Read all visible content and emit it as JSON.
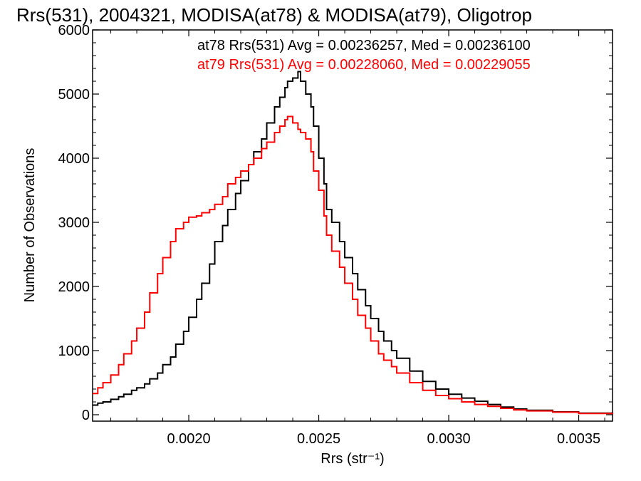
{
  "chart_data": {
    "type": "line",
    "title": "Rrs(531), 2004321, MODISA(at78) & MODISA(at79), Oligotrop",
    "xlabel": "Rrs (str⁻¹)",
    "ylabel": "Number of Observations",
    "xlim": [
      0.00163,
      0.00363
    ],
    "ylim": [
      -100,
      6000
    ],
    "xticks": [
      {
        "value": 0.002,
        "label": "0.0020"
      },
      {
        "value": 0.0025,
        "label": "0.0025"
      },
      {
        "value": 0.003,
        "label": "0.0030"
      },
      {
        "value": 0.0035,
        "label": "0.0035"
      }
    ],
    "yticks": [
      {
        "value": 0,
        "label": "0"
      },
      {
        "value": 1000,
        "label": "1000"
      },
      {
        "value": 2000,
        "label": "2000"
      },
      {
        "value": 3000,
        "label": "3000"
      },
      {
        "value": 4000,
        "label": "4000"
      },
      {
        "value": 5000,
        "label": "5000"
      },
      {
        "value": 6000,
        "label": "6000"
      }
    ],
    "legend_position": "top-right",
    "series": [
      {
        "name": "at78 Rrs(531) Avg = 0.00236257, Med = 0.00236100",
        "color": "#000000",
        "x": [
          0.00163,
          0.00165,
          0.00167,
          0.0017,
          0.00173,
          0.00175,
          0.00178,
          0.0018,
          0.00183,
          0.00185,
          0.00188,
          0.0019,
          0.00193,
          0.00195,
          0.00198,
          0.002,
          0.00203,
          0.00205,
          0.00208,
          0.0021,
          0.00213,
          0.00215,
          0.00218,
          0.0022,
          0.00223,
          0.00225,
          0.00228,
          0.0023,
          0.00233,
          0.00235,
          0.00237,
          0.00238,
          0.0024,
          0.00242,
          0.00243,
          0.00245,
          0.00247,
          0.00248,
          0.0025,
          0.00252,
          0.00253,
          0.00255,
          0.00258,
          0.0026,
          0.00263,
          0.00265,
          0.00268,
          0.0027,
          0.00273,
          0.00275,
          0.00278,
          0.0028,
          0.00285,
          0.0029,
          0.00295,
          0.003,
          0.00305,
          0.0031,
          0.00315,
          0.0032,
          0.00325,
          0.0033,
          0.0034,
          0.0035,
          0.00363
        ],
        "y": [
          150,
          180,
          200,
          240,
          280,
          320,
          380,
          420,
          480,
          560,
          650,
          780,
          900,
          1100,
          1300,
          1520,
          1800,
          2050,
          2350,
          2700,
          2950,
          3200,
          3450,
          3650,
          3900,
          4100,
          4300,
          4550,
          4800,
          4950,
          5100,
          5200,
          5250,
          5350,
          5200,
          5000,
          4800,
          4500,
          4000,
          3600,
          3200,
          3000,
          2700,
          2450,
          2200,
          1950,
          1700,
          1500,
          1300,
          1150,
          1000,
          880,
          680,
          520,
          400,
          320,
          260,
          210,
          160,
          120,
          90,
          70,
          45,
          25,
          10
        ]
      },
      {
        "name": "at79 Rrs(531) Avg = 0.00228060, Med = 0.00229055",
        "color": "#ff0000",
        "x": [
          0.00163,
          0.00165,
          0.00167,
          0.0017,
          0.00173,
          0.00175,
          0.00178,
          0.0018,
          0.00183,
          0.00185,
          0.00188,
          0.0019,
          0.00193,
          0.00195,
          0.00198,
          0.002,
          0.00203,
          0.00205,
          0.00208,
          0.0021,
          0.00213,
          0.00215,
          0.00218,
          0.0022,
          0.00223,
          0.00225,
          0.00228,
          0.0023,
          0.00233,
          0.00235,
          0.00237,
          0.00238,
          0.0024,
          0.00242,
          0.00243,
          0.00245,
          0.00247,
          0.00248,
          0.0025,
          0.00252,
          0.00253,
          0.00255,
          0.00258,
          0.0026,
          0.00263,
          0.00265,
          0.00268,
          0.0027,
          0.00273,
          0.00275,
          0.00278,
          0.0028,
          0.00285,
          0.0029,
          0.00295,
          0.003,
          0.00305,
          0.0031,
          0.00315,
          0.0032,
          0.00325,
          0.0033,
          0.0034,
          0.0035,
          0.00363
        ],
        "y": [
          330,
          420,
          500,
          620,
          780,
          950,
          1150,
          1350,
          1600,
          1900,
          2200,
          2450,
          2700,
          2900,
          3000,
          3080,
          3100,
          3150,
          3200,
          3280,
          3400,
          3600,
          3700,
          3800,
          3900,
          4000,
          4150,
          4250,
          4400,
          4500,
          4600,
          4650,
          4550,
          4450,
          4400,
          4300,
          4100,
          3800,
          3500,
          3100,
          2800,
          2550,
          2300,
          2050,
          1800,
          1550,
          1350,
          1150,
          950,
          850,
          750,
          650,
          500,
          380,
          300,
          250,
          200,
          160,
          130,
          100,
          75,
          60,
          40,
          20,
          8
        ]
      }
    ]
  }
}
